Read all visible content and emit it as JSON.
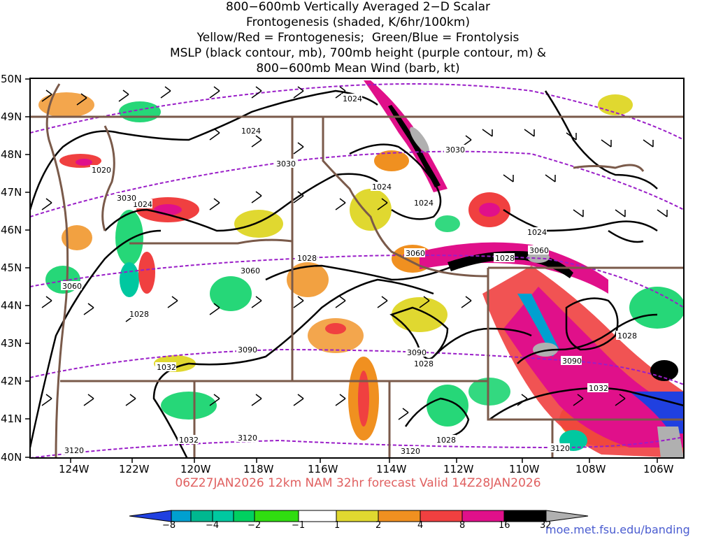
{
  "title": {
    "lines": [
      "800−600mb Vertically Averaged 2−D Scalar",
      "Frontogenesis (shaded, K/6hr/100km)",
      "Yellow/Red = Frontogenesis;  Green/Blue = Frontolysis",
      "MSLP (black contour, mb), 700mb height (purple contour, m) &",
      "800−600mb Mean Wind (barb, kt)"
    ]
  },
  "subtitle": "06Z27JAN2026 12km NAM 32hr forecast Valid 14Z28JAN2026",
  "credit": "moe.met.fsu.edu/banding",
  "map": {
    "lat_labels": [
      "50N",
      "49N",
      "48N",
      "47N",
      "46N",
      "45N",
      "44N",
      "43N",
      "42N",
      "41N",
      "40N"
    ],
    "lon_labels": [
      "124W",
      "122W",
      "120W",
      "118W",
      "116W",
      "114W",
      "112W",
      "110W",
      "108W",
      "106W"
    ],
    "mslp_labels": [
      "1024",
      "1024",
      "1020",
      "1024",
      "1024",
      "1024",
      "1024",
      "1028",
      "1028",
      "1028",
      "1028",
      "1032",
      "1032",
      "1032",
      "1028",
      "1028"
    ],
    "height_labels": [
      "3030",
      "3030",
      "3030",
      "3060",
      "3060",
      "3060",
      "3090",
      "3090",
      "3090",
      "3120",
      "3120",
      "3120",
      "3120",
      "3060"
    ]
  },
  "colorbar": {
    "labels": [
      "−8",
      "−4",
      "−2",
      "−1",
      "1",
      "2",
      "4",
      "8",
      "16",
      "32"
    ],
    "colors": [
      "#2040e0",
      "#00a0d0",
      "#00c8a0",
      "#00d060",
      "#50e020",
      "#ffffff",
      "#e0d830",
      "#f09020",
      "#f04040",
      "#e0108a",
      "#000000",
      "#b0b0b0"
    ]
  },
  "colors": {
    "pressure": "#000000",
    "height": "#9a1ec8",
    "border": "#7a5a4a",
    "subtitle": "#e06060"
  }
}
